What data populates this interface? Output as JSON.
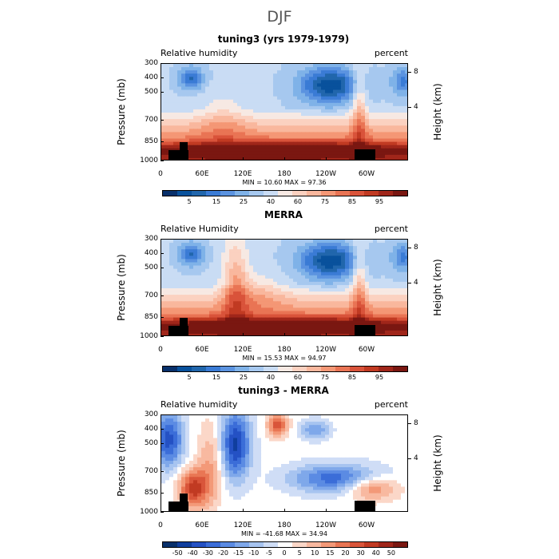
{
  "page_title": "DJF",
  "colors": {
    "rh_levels": [
      "#08306b",
      "#08519c",
      "#2166ac",
      "#3a7bd5",
      "#5b93e0",
      "#7fb2e8",
      "#a6c8ef",
      "#c9dcf4",
      "#f7e9e3",
      "#fbd1c0",
      "#f9b79d",
      "#f49775",
      "#e97454",
      "#d9533a",
      "#c13a22",
      "#a0261a",
      "#7a1711"
    ],
    "diff_levels": [
      "#08306b",
      "#103e9e",
      "#2451c4",
      "#3b6dd8",
      "#5b8be3",
      "#7fa8ea",
      "#a7c4f0",
      "#cfddf6",
      "#ffffff",
      "#fbd7c8",
      "#f8b9a0",
      "#f39978",
      "#e97654",
      "#d9553a",
      "#c13a22",
      "#a0261a",
      "#7a1711"
    ],
    "terrain": "#000000"
  },
  "chart_data": [
    {
      "type": "heatmap",
      "title": "tuning3 (yrs 1979-1979)",
      "variable_label": "Relative humidity",
      "units": "percent",
      "ylabel": "Pressure (mb)",
      "y2label": "Height (km)",
      "yticks": [
        "300",
        "400",
        "500",
        "700",
        "850",
        "1000"
      ],
      "y2ticks": [
        "8",
        "4"
      ],
      "xticks": [
        "0",
        "60E",
        "120E",
        "180",
        "120W",
        "60W"
      ],
      "stats": "MIN =   10.60   MAX =   97.36",
      "min": 10.6,
      "max": 97.36,
      "colorbar_labels": [
        "5",
        "15",
        "25",
        "40",
        "60",
        "75",
        "85",
        "95"
      ],
      "palette": "rh"
    },
    {
      "type": "heatmap",
      "title": "MERRA",
      "variable_label": "Relative Humidity",
      "units": "percent",
      "ylabel": "Pressure (mb)",
      "y2label": "Height (km)",
      "yticks": [
        "300",
        "400",
        "500",
        "700",
        "850",
        "1000"
      ],
      "y2ticks": [
        "8",
        "4"
      ],
      "xticks": [
        "0",
        "60E",
        "120E",
        "180",
        "120W",
        "60W"
      ],
      "stats": "MIN =   15.53   MAX =   94.97",
      "min": 15.53,
      "max": 94.97,
      "colorbar_labels": [
        "5",
        "15",
        "25",
        "40",
        "60",
        "75",
        "85",
        "95"
      ],
      "palette": "rh"
    },
    {
      "type": "heatmap",
      "title": "tuning3 - MERRA",
      "variable_label": "Relative humidity",
      "units": "percent",
      "ylabel": "Pressure (mb)",
      "y2label": "Height (km)",
      "yticks": [
        "300",
        "400",
        "500",
        "700",
        "850",
        "1000"
      ],
      "y2ticks": [
        "8",
        "4"
      ],
      "xticks": [
        "0",
        "60E",
        "120E",
        "180",
        "120W",
        "60W"
      ],
      "stats": "MIN =  -41.68   MAX =   34.94",
      "min": -41.68,
      "max": 34.94,
      "colorbar_labels": [
        "-50",
        "-40",
        "-30",
        "-20",
        "-15",
        "-10",
        "-5",
        "0",
        "5",
        "10",
        "15",
        "20",
        "30",
        "40",
        "50"
      ],
      "palette": "diff"
    }
  ]
}
